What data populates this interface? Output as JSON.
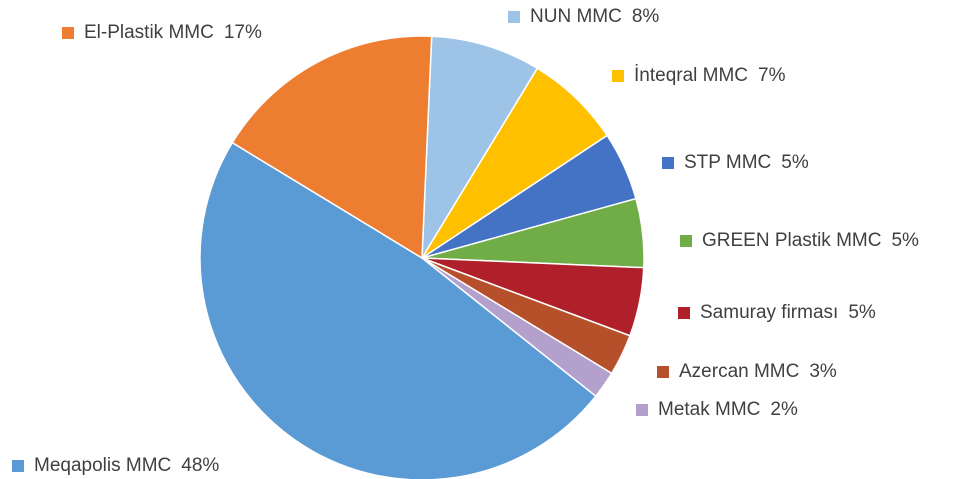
{
  "chart_data": {
    "type": "pie",
    "categories": [
      "NUN MMC",
      "İnteqral MMC",
      "STP MMC",
      "GREEN Plastik MMC",
      "Samuray firması",
      "Azercan MMC",
      "Metak MMC",
      "Meqapolis MMC",
      "El-Plastik MMC"
    ],
    "values": [
      8,
      7,
      5,
      5,
      5,
      3,
      2,
      48,
      17
    ],
    "value_labels": [
      "8%",
      "7%",
      "5%",
      "5%",
      "5%",
      "3%",
      "2%",
      "48%",
      "17%"
    ],
    "colors": [
      "#9dc3e6",
      "#ffc000",
      "#4472c4",
      "#70ad47",
      "#b0202a",
      "#b5502a",
      "#b4a0cc",
      "#5b9bd5",
      "#ed7d31"
    ]
  }
}
